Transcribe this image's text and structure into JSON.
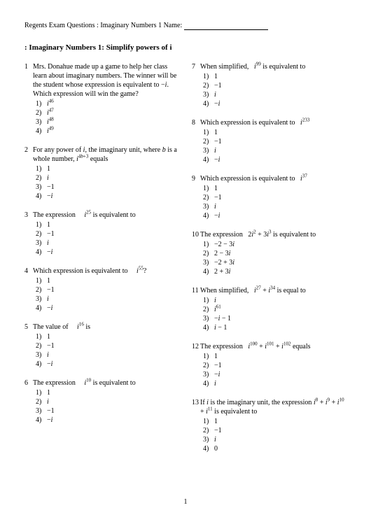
{
  "header": {
    "prefix": "Regents Exam Questions  : Imaginary Numbers 1 Name: "
  },
  "title": ": Imaginary Numbers 1: Simplify powers of i",
  "pagenum": "1",
  "leftQuestions": [
    {
      "num": "1",
      "text": "Mrs. Donahue made up a game to help her class learn about imaginary numbers.  The winner will be the student whose expression is equivalent to −<i>i</i>. Which expression will win the game?",
      "choices": [
        "<i>i</i><sup>46</sup>",
        "<i>i</i><sup>47</sup>",
        "<i>i</i><sup>48</sup>",
        "<i>i</i><sup>49</sup>"
      ]
    },
    {
      "num": "2",
      "text": "For any power of <i>i</i>, the imaginary unit, where <i>b</i> is a whole number, <i>i</i><sup>4<i>b</i>+3</sup> equals",
      "choices": [
        "1",
        "<i>i</i>",
        "−1",
        "−<i>i</i>"
      ]
    },
    {
      "num": "3",
      "text": "The expression &nbsp;&nbsp;&nbsp; <i>i</i><sup>25</sup> is equivalent to",
      "choices": [
        "1",
        "−1",
        "<i>i</i>",
        "−<i>i</i>"
      ]
    },
    {
      "num": "4",
      "text": "Which expression is equivalent to &nbsp;&nbsp;&nbsp; <i>i</i><sup>55</sup>?",
      "choices": [
        "1",
        "−1",
        "<i>i</i>",
        "−<i>i</i>"
      ]
    },
    {
      "num": "5",
      "text": "The value of &nbsp;&nbsp;&nbsp; <i>i</i><sup>16</sup> is",
      "choices": [
        "1",
        "−1",
        "<i>i</i>",
        "−<i>i</i>"
      ]
    },
    {
      "num": "6",
      "text": "The expression &nbsp;&nbsp;&nbsp; <i>i</i><sup>10</sup> is equivalent to",
      "choices": [
        "1",
        "<i>i</i>",
        "−1",
        "−<i>i</i>"
      ]
    }
  ],
  "rightQuestions": [
    {
      "num": "7",
      "text": "When simplified, &nbsp; <i>i</i><sup>99</sup> is equivalent to",
      "choices": [
        "1",
        "−1",
        "<i>i</i>",
        "−<i>i</i>"
      ]
    },
    {
      "num": "8",
      "text": "Which expression is equivalent to &nbsp; <i>i</i><sup>233</sup>",
      "choices": [
        "1",
        "−1",
        "<i>i</i>",
        "−<i>i</i>"
      ]
    },
    {
      "num": "9",
      "text": "Which expression is equivalent to &nbsp; <i>i</i><sup>37</sup>",
      "choices": [
        "1",
        "−1",
        "<i>i</i>",
        "−<i>i</i>"
      ]
    },
    {
      "num": "10",
      "text": "The expression &nbsp; 2<i>i</i><sup>2</sup> + 3<i>i</i><sup>3</sup> is equivalent to",
      "choices": [
        "−2 − 3<i>i</i>",
        "2 − 3<i>i</i>",
        "−2 + 3<i>i</i>",
        "2 + 3<i>i</i>"
      ]
    },
    {
      "num": "11",
      "text": "When simplified, &nbsp; <i>i</i><sup>27</sup> + <i>i</i><sup>34</sup> is equal to",
      "choices": [
        "<i>i</i>",
        "<i>i</i><sup>61</sup>",
        "−<i>i</i> − 1",
        "<i>i</i> − 1"
      ]
    },
    {
      "num": "12",
      "text": "The expression &nbsp; <i>i</i><sup>100</sup> + <i>i</i><sup>101</sup> + <i>i</i><sup>102</sup> equals",
      "choices": [
        "1",
        "−1",
        "−<i>i</i>",
        "<i>i</i>"
      ]
    },
    {
      "num": "13",
      "text": "If <i>i</i> is the imaginary unit, the expression <i>i</i><sup>8</sup> + <i>i</i><sup>9</sup> + <i>i</i><sup>10</sup> + <i>i</i><sup>11</sup> is equivalent to",
      "choices": [
        "1",
        "−1",
        "<i>i</i>",
        "0"
      ]
    }
  ]
}
